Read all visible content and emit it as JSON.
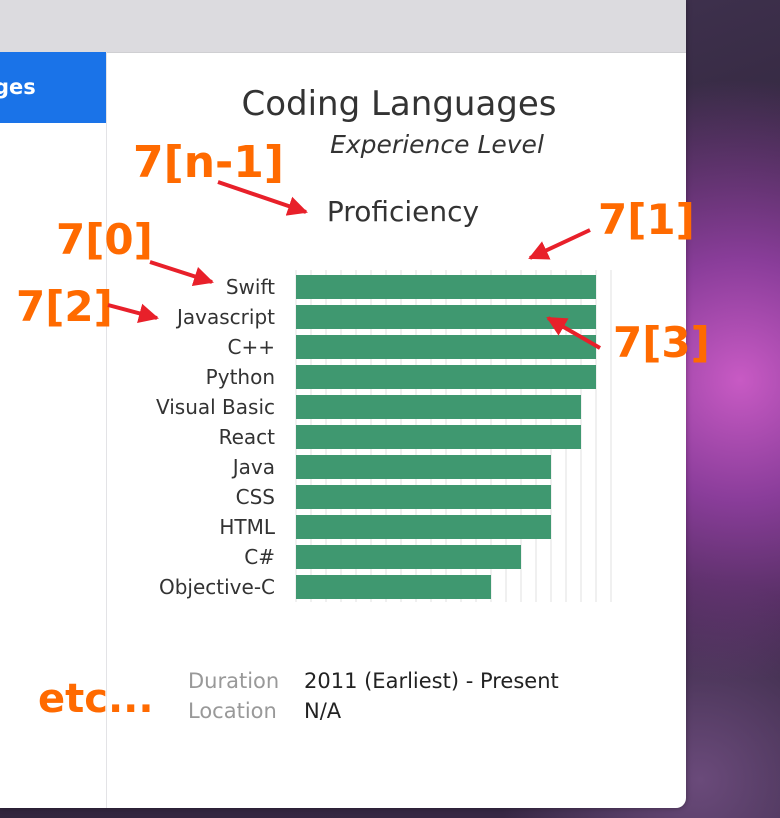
{
  "sidebar": {
    "active_tab_label": "ges"
  },
  "chart_card": {
    "title": "Coding Languages",
    "subtitle": "Experience Level",
    "details": [
      {
        "label": "Duration",
        "value": "2011 (Earliest) - Present"
      },
      {
        "label": "Location",
        "value": "N/A"
      }
    ]
  },
  "chart_data": {
    "type": "bar",
    "orientation": "horizontal",
    "title": "Coding Languages",
    "subtitle": "Experience Level",
    "xlabel": "Proficiency",
    "ylabel": "",
    "categories": [
      "Swift",
      "Javascript",
      "C++",
      "Python",
      "Visual Basic",
      "React",
      "Java",
      "CSS",
      "HTML",
      "C#",
      "Objective-C"
    ],
    "values": [
      10,
      10,
      10,
      10,
      9.5,
      9.5,
      8.5,
      8.5,
      8.5,
      7.5,
      6.5
    ],
    "xlim": [
      0,
      10.5
    ],
    "grid": true,
    "bar_color": "#3f9870"
  },
  "annotations": {
    "n_minus_1": "7[n-1]",
    "zero": "7[0]",
    "one": "7[1]",
    "two": "7[2]",
    "three": "7[3]",
    "etc": "etc...",
    "color": "#ff6a00",
    "arrow_color": "#e8202a"
  }
}
